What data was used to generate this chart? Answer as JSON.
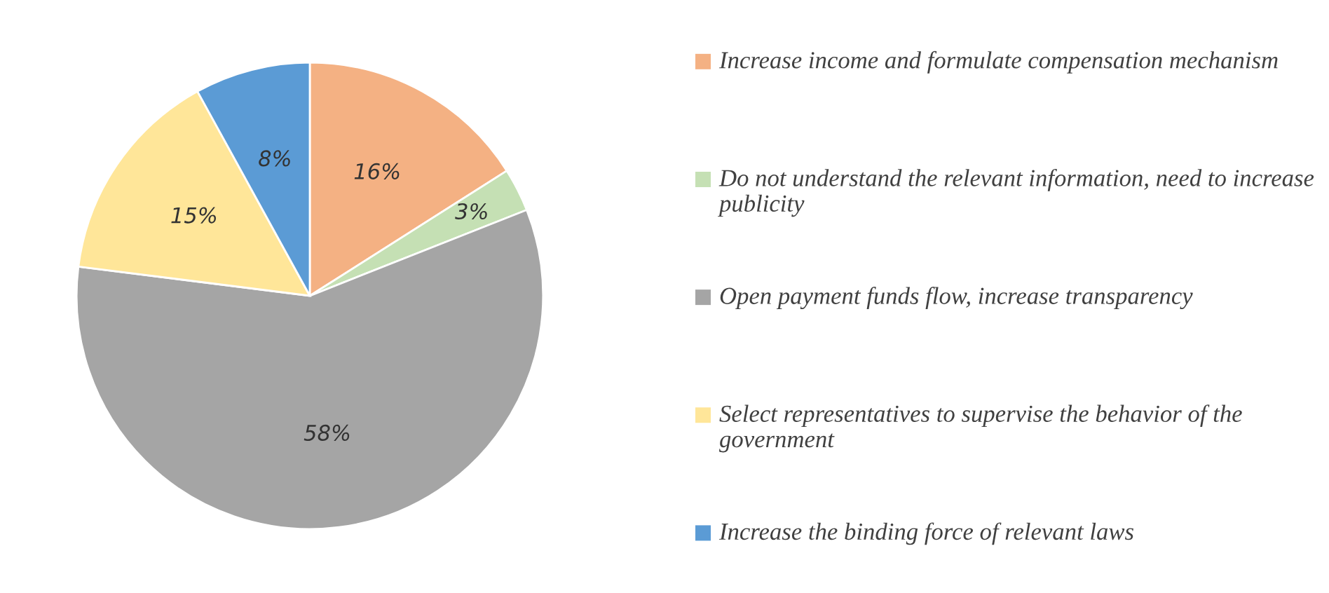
{
  "chart_data": {
    "type": "pie",
    "categories": [
      "Increase income and formulate compensation mechanism",
      "Do not understand the relevant information, need to increase publicity",
      "Open payment funds flow, increase transparency",
      "Select representatives to supervise the behavior of the government",
      "Increase the binding force of relevant laws"
    ],
    "values": [
      16,
      3,
      58,
      15,
      8
    ],
    "value_labels": [
      "16%",
      "3%",
      "58%",
      "15%",
      "8%"
    ],
    "colors": [
      "#f4b183",
      "#c5e0b4",
      "#a5a5a5",
      "#ffe699",
      "#5b9bd5"
    ],
    "legend": "right"
  }
}
